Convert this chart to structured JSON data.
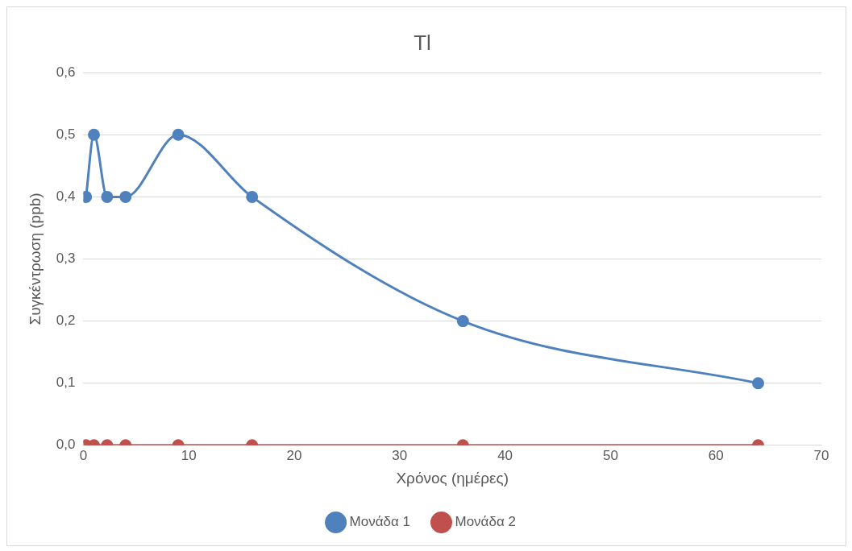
{
  "chart_data": {
    "type": "line",
    "title": "Tl",
    "xlabel": "Χρόνος (ημέρες)",
    "ylabel": "Συγκέντρωση (ppb)",
    "x": [
      0.25,
      1,
      2.25,
      4,
      9,
      16,
      36,
      64
    ],
    "series": [
      {
        "name": "Μονάδα 1",
        "color": "#4f81bd",
        "values": [
          0.4,
          0.5,
          0.4,
          0.4,
          0.5,
          0.4,
          0.2,
          0.1
        ]
      },
      {
        "name": "Μονάδα 2",
        "color": "#c0504d",
        "values": [
          0,
          0,
          0,
          0,
          0,
          0,
          0,
          0
        ]
      }
    ],
    "xlim": [
      0,
      70
    ],
    "xticks": [
      0,
      10,
      20,
      30,
      40,
      50,
      60,
      70
    ],
    "ylim": [
      0,
      0.6
    ],
    "yticks": [
      {
        "value": 0,
        "label": "0,0"
      },
      {
        "value": 0.1,
        "label": "0,1"
      },
      {
        "value": 0.2,
        "label": "0,2"
      },
      {
        "value": 0.3,
        "label": "0,3"
      },
      {
        "value": 0.4,
        "label": "0,4"
      },
      {
        "value": 0.5,
        "label": "0,5"
      },
      {
        "value": 0.6,
        "label": "0,6"
      }
    ],
    "grid": "y",
    "legend": "bottom",
    "marker": "circle",
    "line_style": "solid"
  }
}
